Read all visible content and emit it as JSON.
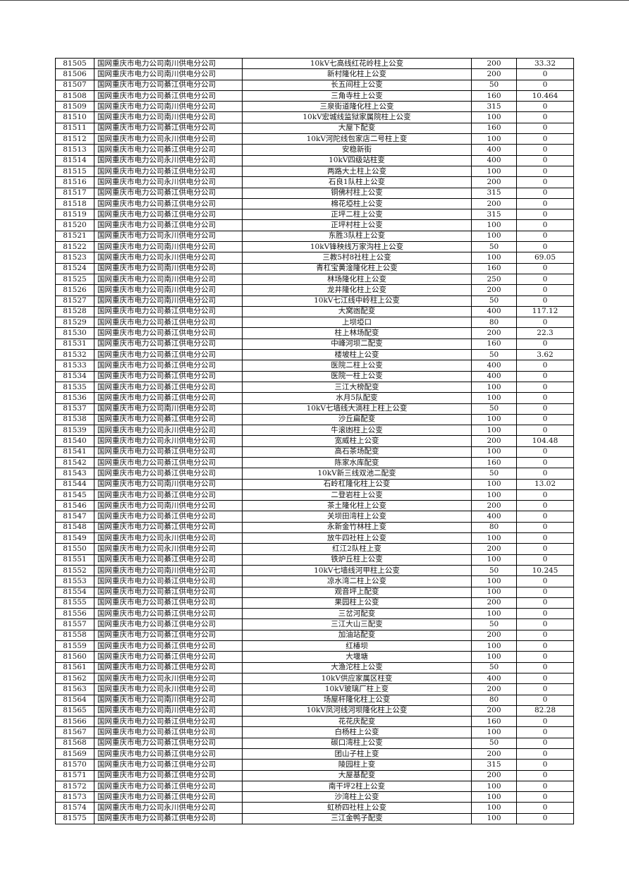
{
  "rows": [
    [
      "81505",
      "国网重庆市电力公司南川供电分公司",
      "10kV七高线红花岭柱上公变",
      "200",
      "33.32"
    ],
    [
      "81506",
      "国网重庆市电力公司南川供电分公司",
      "新村隆化柱上公变",
      "200",
      "0"
    ],
    [
      "81507",
      "国网重庆市电力公司綦江供电分公司",
      "长五间柱上公变",
      "50",
      "0"
    ],
    [
      "81508",
      "国网重庆市电力公司綦江供电分公司",
      "三角寺柱上公变",
      "160",
      "10.464"
    ],
    [
      "81509",
      "国网重庆市电力公司南川供电分公司",
      "三泉街道隆化柱上公变",
      "315",
      "0"
    ],
    [
      "81510",
      "国网重庆市电力公司南川供电分公司",
      "10kV宏城线监狱家属院柱上公变",
      "100",
      "0"
    ],
    [
      "81511",
      "国网重庆市电力公司綦江供电分公司",
      "大屋下配变",
      "160",
      "0"
    ],
    [
      "81512",
      "国网重庆市电力公司永川供电分公司",
      "10kV河陀线包家店二号柱上变",
      "100",
      "0"
    ],
    [
      "81513",
      "国网重庆市电力公司綦江供电分公司",
      "安稳新街",
      "400",
      "0"
    ],
    [
      "81514",
      "国网重庆市电力公司永川供电分公司",
      "10kV四级站柱变",
      "400",
      "0"
    ],
    [
      "81515",
      "国网重庆市电力公司綦江供电分公司",
      "两路大土柱上公变",
      "100",
      "0"
    ],
    [
      "81516",
      "国网重庆市电力公司永川供电分公司",
      "石良1队柱上公变",
      "200",
      "0"
    ],
    [
      "81517",
      "国网重庆市电力公司綦江供电分公司",
      "铜佛村柱上公变",
      "315",
      "0"
    ],
    [
      "81518",
      "国网重庆市电力公司綦江供电分公司",
      "棉花埡柱上公变",
      "200",
      "0"
    ],
    [
      "81519",
      "国网重庆市电力公司綦江供电分公司",
      "正坪二柱上公变",
      "315",
      "0"
    ],
    [
      "81520",
      "国网重庆市电力公司綦江供电分公司",
      "正坪村柱上公变",
      "100",
      "0"
    ],
    [
      "81521",
      "国网重庆市电力公司永川供电分公司",
      "东胜3队柱上公变",
      "100",
      "0"
    ],
    [
      "81522",
      "国网重庆市电力公司南川供电分公司",
      "10kV锋秧线万家沟柱上公变",
      "50",
      "0"
    ],
    [
      "81523",
      "国网重庆市电力公司永川供电分公司",
      "三教5村8社柱上公变",
      "100",
      "69.05"
    ],
    [
      "81524",
      "国网重庆市电力公司南川供电分公司",
      "青杠宝黄淦隆化柱上公变",
      "160",
      "0"
    ],
    [
      "81525",
      "国网重庆市电力公司南川供电分公司",
      "林场隆化柱上公变",
      "250",
      "0"
    ],
    [
      "81526",
      "国网重庆市电力公司南川供电分公司",
      "龙井隆化柱上公变",
      "200",
      "0"
    ],
    [
      "81527",
      "国网重庆市电力公司南川供电分公司",
      "10kV七江线中岭柱上公变",
      "50",
      "0"
    ],
    [
      "81528",
      "国网重庆市电力公司綦江供电分公司",
      "大窝凼配变",
      "400",
      "117.12"
    ],
    [
      "81529",
      "国网重庆市电力公司綦江供电分公司",
      "上坝埡口",
      "80",
      "0"
    ],
    [
      "81530",
      "国网重庆市电力公司綦江供电分公司",
      "柱上林场配变",
      "200",
      "22.3"
    ],
    [
      "81531",
      "国网重庆市电力公司綦江供电分公司",
      "中峰河坝二配变",
      "160",
      "0"
    ],
    [
      "81532",
      "国网重庆市电力公司綦江供电分公司",
      "楼坡柱上公变",
      "50",
      "3.62"
    ],
    [
      "81533",
      "国网重庆市电力公司綦江供电分公司",
      "医院二柱上公变",
      "400",
      "0"
    ],
    [
      "81534",
      "国网重庆市电力公司綦江供电分公司",
      "医院一柱上公变",
      "400",
      "0"
    ],
    [
      "81535",
      "国网重庆市电力公司綦江供电分公司",
      "三江大榜配变",
      "100",
      "0"
    ],
    [
      "81536",
      "国网重庆市电力公司綦江供电分公司",
      "水月5队配变",
      "100",
      "0"
    ],
    [
      "81537",
      "国网重庆市电力公司南川供电分公司",
      "10kV七墙线大淌柱上柱上公变",
      "50",
      "0"
    ],
    [
      "81538",
      "国网重庆市电力公司綦江供电分公司",
      "沙丘扁配变",
      "100",
      "0"
    ],
    [
      "81539",
      "国网重庆市电力公司永川供电分公司",
      "牛滚凼柱上公变",
      "100",
      "0"
    ],
    [
      "81540",
      "国网重庆市电力公司永川供电分公司",
      "宽威柱上公变",
      "200",
      "104.48"
    ],
    [
      "81541",
      "国网重庆市电力公司綦江供电分公司",
      "高石茶场配变",
      "100",
      "0"
    ],
    [
      "81542",
      "国网重庆市电力公司綦江供电分公司",
      "陈家水库配变",
      "160",
      "0"
    ],
    [
      "81543",
      "国网重庆市电力公司綦江供电分公司",
      "10kV新三线双池二配变",
      "50",
      "0"
    ],
    [
      "81544",
      "国网重庆市电力公司南川供电分公司",
      "石岭杠隆化柱上公变",
      "100",
      "13.02"
    ],
    [
      "81545",
      "国网重庆市电力公司綦江供电分公司",
      "二登岩柱上公变",
      "100",
      "0"
    ],
    [
      "81546",
      "国网重庆市电力公司南川供电分公司",
      "茶土隆化柱上公变",
      "200",
      "0"
    ],
    [
      "81547",
      "国网重庆市电力公司綦江供电分公司",
      "关坝田湾柱上公变",
      "400",
      "0"
    ],
    [
      "81548",
      "国网重庆市电力公司綦江供电分公司",
      "永新金竹林柱上变",
      "80",
      "0"
    ],
    [
      "81549",
      "国网重庆市电力公司永川供电分公司",
      "放牛四社柱上公变",
      "100",
      "0"
    ],
    [
      "81550",
      "国网重庆市电力公司永川供电分公司",
      "红江2队柱上变",
      "200",
      "0"
    ],
    [
      "81551",
      "国网重庆市电力公司綦江供电分公司",
      "铁炉丘柱上公变",
      "100",
      "0"
    ],
    [
      "81552",
      "国网重庆市电力公司南川供电分公司",
      "10kV七墙线河甲柱上公变",
      "50",
      "10.245"
    ],
    [
      "81553",
      "国网重庆市电力公司綦江供电分公司",
      "凉水湾二柱上公变",
      "100",
      "0"
    ],
    [
      "81554",
      "国网重庆市电力公司綦江供电分公司",
      "观音坪上配变",
      "100",
      "0"
    ],
    [
      "81555",
      "国网重庆市电力公司綦江供电分公司",
      "果园柱上公变",
      "200",
      "0"
    ],
    [
      "81556",
      "国网重庆市电力公司綦江供电分公司",
      "三岔河配变",
      "100",
      "0"
    ],
    [
      "81557",
      "国网重庆市电力公司綦江供电分公司",
      "三江大山三配变",
      "50",
      "0"
    ],
    [
      "81558",
      "国网重庆市电力公司綦江供电分公司",
      "加油站配变",
      "200",
      "0"
    ],
    [
      "81559",
      "国网重庆市电力公司綦江供电分公司",
      "红椿坝",
      "100",
      "0"
    ],
    [
      "81560",
      "国网重庆市电力公司綦江供电分公司",
      "大堰塘",
      "100",
      "0"
    ],
    [
      "81561",
      "国网重庆市电力公司綦江供电分公司",
      "大渔沱柱上公变",
      "50",
      "0"
    ],
    [
      "81562",
      "国网重庆市电力公司永川供电分公司",
      "10kV供应家属区柱变",
      "400",
      "0"
    ],
    [
      "81563",
      "国网重庆市电力公司永川供电分公司",
      "10kV玻璃厂柱上变",
      "200",
      "0"
    ],
    [
      "81564",
      "国网重庆市电力公司南川供电分公司",
      "场屋杆隆化柱上公变",
      "80",
      "0"
    ],
    [
      "81565",
      "国网重庆市电力公司南川供电分公司",
      "10kV凤河线河坝隆化柱上公变",
      "200",
      "82.28"
    ],
    [
      "81566",
      "国网重庆市电力公司綦江供电分公司",
      "花花庆配变",
      "160",
      "0"
    ],
    [
      "81567",
      "国网重庆市电力公司綦江供电分公司",
      "白杨柱上公变",
      "100",
      "0"
    ],
    [
      "81568",
      "国网重庆市电力公司綦江供电分公司",
      "碳口湾柱上公变",
      "50",
      "0"
    ],
    [
      "81569",
      "国网重庆市电力公司綦江供电分公司",
      "团山子柱上变",
      "200",
      "0"
    ],
    [
      "81570",
      "国网重庆市电力公司綦江供电分公司",
      "陵园柱上变",
      "315",
      "0"
    ],
    [
      "81571",
      "国网重庆市电力公司綦江供电分公司",
      "大屋基配变",
      "200",
      "0"
    ],
    [
      "81572",
      "国网重庆市电力公司綦江供电分公司",
      "南干坪2柱上公变",
      "100",
      "0"
    ],
    [
      "81573",
      "国网重庆市电力公司綦江供电分公司",
      "沙湾柱上公变",
      "100",
      "0"
    ],
    [
      "81574",
      "国网重庆市电力公司永川供电分公司",
      "虹桥四社柱上公变",
      "100",
      "0"
    ],
    [
      "81575",
      "国网重庆市电力公司綦江供电分公司",
      "三江金鸭子配变",
      "100",
      "0"
    ]
  ]
}
